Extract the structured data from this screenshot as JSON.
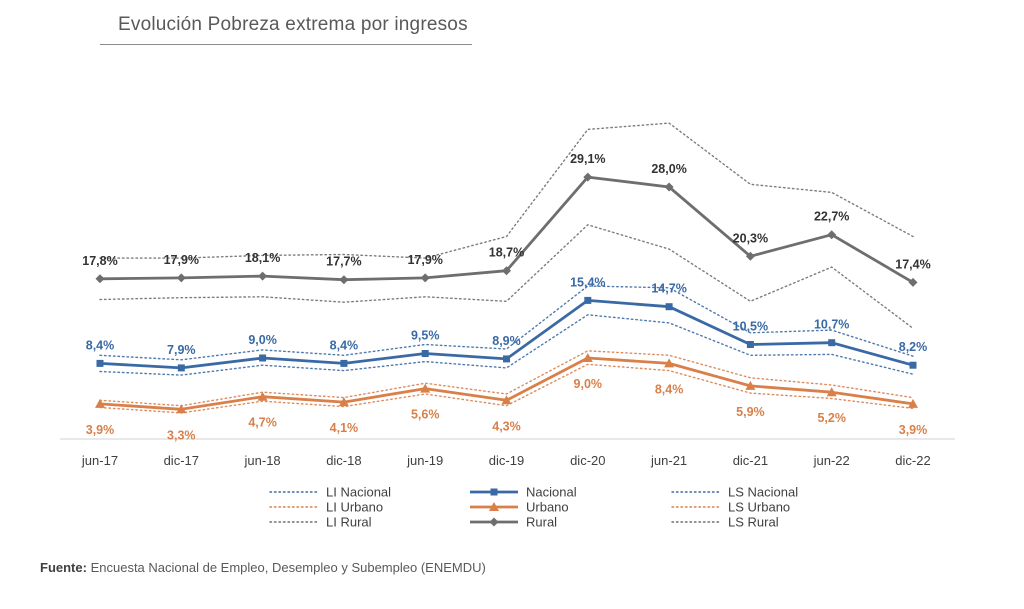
{
  "title": "Evolución Pobreza extrema por ingresos",
  "source": {
    "label": "Fuente:",
    "text": "Encuesta Nacional de Empleo, Desempleo y Subempleo (ENEMDU)"
  },
  "colors": {
    "nacional": "#3a6aa5",
    "urbano": "#d9804a",
    "rural": "#6e6e6e"
  },
  "chart_data": {
    "type": "line",
    "title": "Evolución Pobreza extrema por ingresos",
    "categories": [
      "jun-17",
      "dic-17",
      "jun-18",
      "dic-18",
      "jun-19",
      "dic-19",
      "dic-20",
      "jun-21",
      "dic-21",
      "jun-22",
      "dic-22"
    ],
    "ylim": [
      0,
      35
    ],
    "grid": false,
    "legend_position": "bottom",
    "series": [
      {
        "name": "Nacional",
        "values": [
          8.4,
          7.9,
          9.0,
          8.4,
          9.5,
          8.9,
          15.4,
          14.7,
          10.5,
          10.7,
          8.2
        ],
        "labels": [
          "8,4%",
          "7,9%",
          "9,0%",
          "8,4%",
          "9,5%",
          "8,9%",
          "15,4%",
          "14,7%",
          "10,5%",
          "10,7%",
          "8,2%"
        ],
        "marker": "square"
      },
      {
        "name": "Urbano",
        "values": [
          3.9,
          3.3,
          4.7,
          4.1,
          5.6,
          4.3,
          9.0,
          8.4,
          5.9,
          5.2,
          3.9
        ],
        "labels": [
          "3,9%",
          "3,3%",
          "4,7%",
          "4,1%",
          "5,6%",
          "4,3%",
          "9,0%",
          "8,4%",
          "5,9%",
          "5,2%",
          "3,9%"
        ],
        "marker": "triangle"
      },
      {
        "name": "Rural",
        "values": [
          17.8,
          17.9,
          18.1,
          17.7,
          17.9,
          18.7,
          29.1,
          28.0,
          20.3,
          22.7,
          17.4
        ],
        "labels": [
          "17,8%",
          "17,9%",
          "18,1%",
          "17,7%",
          "17,9%",
          "18,7%",
          "29,1%",
          "28,0%",
          "20,3%",
          "22,7%",
          "17,4%"
        ],
        "marker": "diamond"
      },
      {
        "name": "LI Nacional",
        "values": [
          7.5,
          7.1,
          8.2,
          7.6,
          8.6,
          7.9,
          13.8,
          12.9,
          9.3,
          9.4,
          7.2
        ]
      },
      {
        "name": "LS Nacional",
        "values": [
          9.3,
          8.8,
          9.9,
          9.3,
          10.5,
          10.0,
          17.0,
          16.8,
          11.8,
          12.1,
          9.2
        ]
      },
      {
        "name": "LI Urbano",
        "values": [
          3.5,
          2.9,
          4.2,
          3.6,
          5.0,
          3.7,
          8.3,
          7.6,
          5.1,
          4.5,
          3.4
        ]
      },
      {
        "name": "LS Urbano",
        "values": [
          4.3,
          3.7,
          5.2,
          4.6,
          6.2,
          5.0,
          9.8,
          9.3,
          6.8,
          6.0,
          4.6
        ]
      },
      {
        "name": "LI Rural",
        "values": [
          15.5,
          15.7,
          15.8,
          15.2,
          15.8,
          15.3,
          23.8,
          21.1,
          15.3,
          19.1,
          12.3
        ]
      },
      {
        "name": "LS Rural",
        "values": [
          20.1,
          20.1,
          20.4,
          20.5,
          20.1,
          22.5,
          34.4,
          35.1,
          28.3,
          27.4,
          22.5
        ]
      }
    ],
    "legend": [
      {
        "name": "LI Nacional",
        "style": "dotted",
        "color": "#3a6aa5"
      },
      {
        "name": "Nacional",
        "style": "solid-marker",
        "color": "#3a6aa5",
        "marker": "square"
      },
      {
        "name": "LS Nacional",
        "style": "dotted",
        "color": "#3a6aa5"
      },
      {
        "name": "LI Urbano",
        "style": "dotted",
        "color": "#d9804a"
      },
      {
        "name": "Urbano",
        "style": "solid-marker",
        "color": "#d9804a",
        "marker": "triangle"
      },
      {
        "name": "LS Urbano",
        "style": "dotted",
        "color": "#d9804a"
      },
      {
        "name": "LI Rural",
        "style": "dotted",
        "color": "#6e6e6e"
      },
      {
        "name": "Rural",
        "style": "solid-marker",
        "color": "#6e6e6e",
        "marker": "diamond"
      },
      {
        "name": "LS Rural",
        "style": "dotted",
        "color": "#6e6e6e"
      }
    ]
  }
}
